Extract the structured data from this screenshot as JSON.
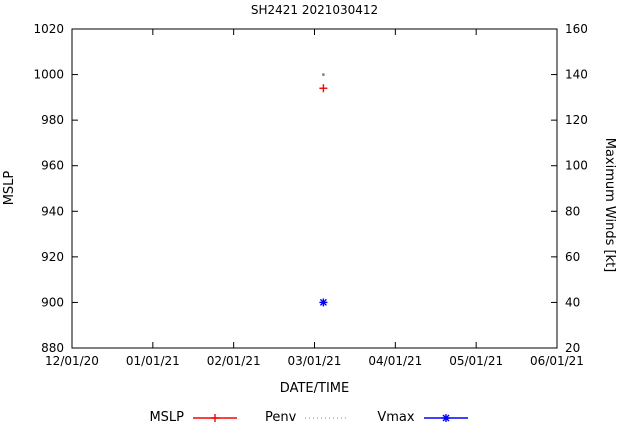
{
  "page": {
    "title": "SH2421 2021030412"
  },
  "chart_data": {
    "type": "scatter",
    "title": "SH2421 2021030412",
    "xlabel": "DATE/TIME",
    "ylabel_left": "MSLP",
    "ylabel_right": "Maximum Winds [kt]",
    "x_unit": "months_from_first_tick",
    "x_range": [
      0,
      6
    ],
    "x_ticks": [
      0,
      1,
      2,
      3,
      4,
      5,
      6
    ],
    "x_tick_labels": [
      "12/01/20",
      "01/01/21",
      "02/01/21",
      "03/01/21",
      "04/01/21",
      "05/01/21",
      "06/01/21"
    ],
    "y_left_range": [
      880,
      1020
    ],
    "y_left_ticks": [
      880,
      900,
      920,
      940,
      960,
      980,
      1000,
      1020
    ],
    "y_right_range": [
      20,
      160
    ],
    "y_right_ticks": [
      20,
      40,
      60,
      80,
      100,
      120,
      140,
      160
    ],
    "grid": false,
    "legend_position": "bottom",
    "series": [
      {
        "name": "MSLP",
        "axis": "left",
        "color": "#ff0000",
        "line": "solid",
        "marker": "plus",
        "points": [
          {
            "x": 3.11,
            "y": 994
          }
        ]
      },
      {
        "name": "Penv",
        "axis": "left",
        "color": "#888888",
        "line": "dotted",
        "marker": "dot",
        "points": [
          {
            "x": 3.11,
            "y": 1000
          }
        ]
      },
      {
        "name": "Vmax",
        "axis": "right",
        "color": "#0000ff",
        "line": "solid",
        "marker": "asterisk",
        "points": [
          {
            "x": 3.11,
            "y": 40
          }
        ]
      }
    ]
  }
}
